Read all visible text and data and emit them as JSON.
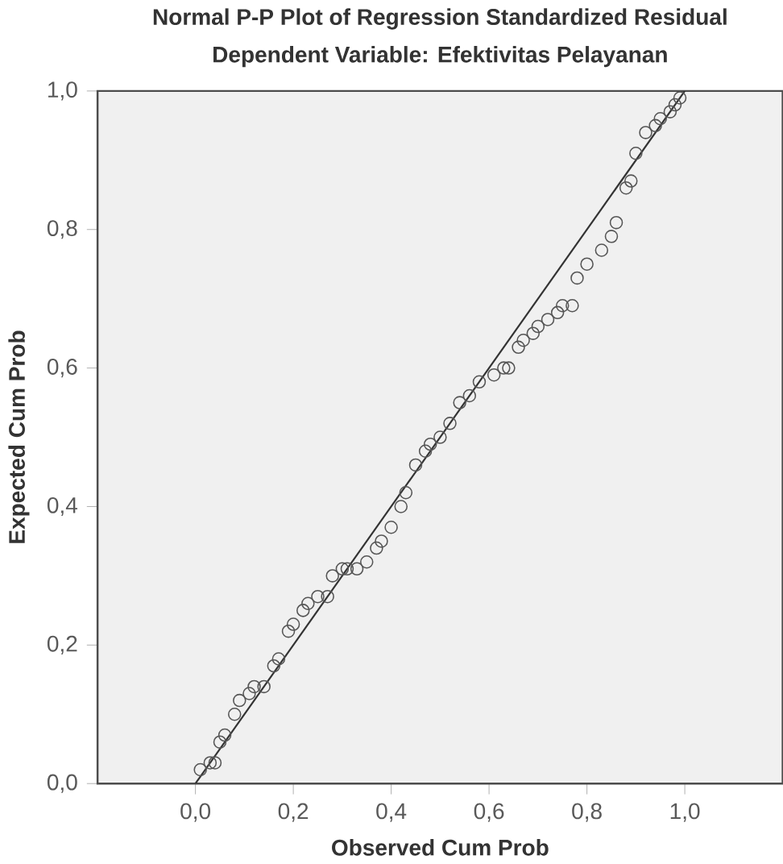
{
  "chart_data": {
    "type": "scatter",
    "title": "Normal P-P Plot of Regression Standardized Residual",
    "subtitle": "Dependent Variable: Efektivitas Pelayanan",
    "xlabel": "Observed Cum Prob",
    "ylabel": "Expected Cum Prob",
    "xlim": [
      -0.2,
      1.2
    ],
    "ylim": [
      0,
      1
    ],
    "xticks": [
      {
        "value": 0,
        "label": "0,0"
      },
      {
        "value": 0.2,
        "label": "0,2"
      },
      {
        "value": 0.4,
        "label": "0,4"
      },
      {
        "value": 0.6,
        "label": "0,6"
      },
      {
        "value": 0.8,
        "label": "0,8"
      },
      {
        "value": 1,
        "label": "1,0"
      }
    ],
    "yticks": [
      {
        "value": 0,
        "label": "0,0"
      },
      {
        "value": 0.2,
        "label": "0,2"
      },
      {
        "value": 0.4,
        "label": "0,4"
      },
      {
        "value": 0.6,
        "label": "0,6"
      },
      {
        "value": 0.8,
        "label": "0,8"
      },
      {
        "value": 1,
        "label": "1,0"
      }
    ],
    "grid": false,
    "marker": "circle",
    "series": [
      {
        "color": "#555555",
        "x": [
          0.01,
          0.03,
          0.04,
          0.05,
          0.06,
          0.08,
          0.09,
          0.11,
          0.12,
          0.14,
          0.16,
          0.17,
          0.19,
          0.2,
          0.22,
          0.23,
          0.25,
          0.27,
          0.28,
          0.3,
          0.31,
          0.33,
          0.35,
          0.37,
          0.38,
          0.4,
          0.42,
          0.43,
          0.45,
          0.47,
          0.48,
          0.5,
          0.52,
          0.54,
          0.56,
          0.58,
          0.61,
          0.63,
          0.64,
          0.66,
          0.67,
          0.69,
          0.7,
          0.72,
          0.74,
          0.75,
          0.77,
          0.78,
          0.8,
          0.83,
          0.85,
          0.86,
          0.88,
          0.89,
          0.9,
          0.92,
          0.94,
          0.95,
          0.97,
          0.98,
          0.99
        ],
        "values": [
          0.02,
          0.03,
          0.03,
          0.06,
          0.07,
          0.1,
          0.12,
          0.13,
          0.14,
          0.14,
          0.17,
          0.18,
          0.22,
          0.23,
          0.25,
          0.26,
          0.27,
          0.27,
          0.3,
          0.31,
          0.31,
          0.31,
          0.32,
          0.34,
          0.35,
          0.37,
          0.4,
          0.42,
          0.46,
          0.48,
          0.49,
          0.5,
          0.52,
          0.55,
          0.56,
          0.58,
          0.59,
          0.6,
          0.6,
          0.63,
          0.64,
          0.65,
          0.66,
          0.67,
          0.68,
          0.69,
          0.69,
          0.73,
          0.75,
          0.77,
          0.79,
          0.81,
          0.86,
          0.87,
          0.91,
          0.94,
          0.95,
          0.96,
          0.97,
          0.98,
          0.99
        ]
      },
      {
        "type": "line",
        "color": "#333333",
        "marker": "none",
        "x": [
          0,
          1
        ],
        "values": [
          0,
          1
        ]
      }
    ]
  }
}
